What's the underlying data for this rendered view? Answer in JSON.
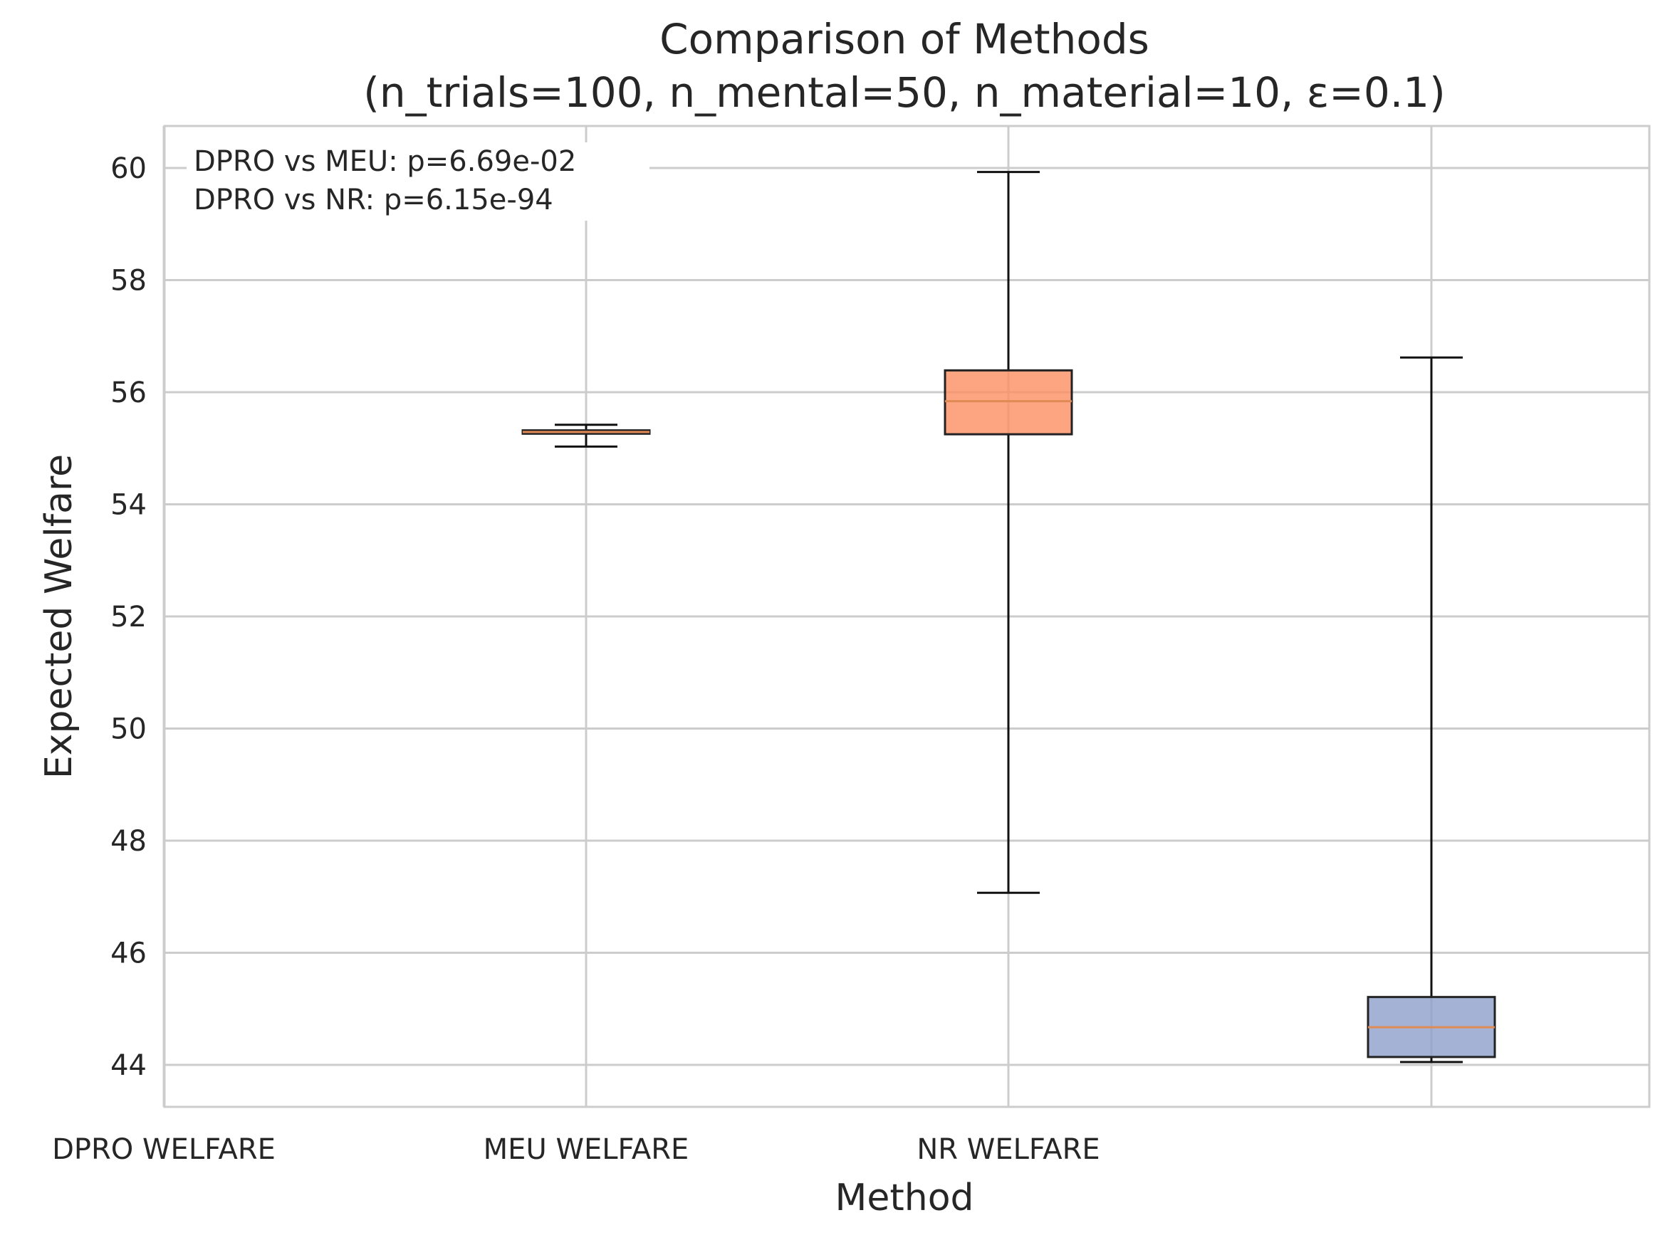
{
  "chart_data": {
    "type": "box",
    "title": "Comparison of Methods",
    "subtitle": "(n_trials=100, n_mental=50, n_material=10, ε=0.1)",
    "xlabel": "Method",
    "ylabel": "Expected Welfare",
    "ylim": [
      43.25,
      60.75
    ],
    "yticks": [
      44,
      46,
      48,
      50,
      52,
      54,
      56,
      58,
      60
    ],
    "categories": [
      "DPRO WELFARE",
      "MEU WELFARE",
      "NR WELFARE",
      ""
    ],
    "grid": true,
    "annotations": [
      "DPRO vs MEU: p=6.69e-02",
      "DPRO vs NR: p=6.15e-94"
    ],
    "boxes": [
      {
        "category": "",
        "whisker_low": 55.03,
        "q1": 55.26,
        "median": 55.29,
        "q3": 55.32,
        "whisker_high": 55.42,
        "color": "#fc8d62"
      },
      {
        "category": "",
        "whisker_low": 47.07,
        "q1": 55.25,
        "median": 55.84,
        "q3": 56.39,
        "whisker_high": 59.93,
        "color": "#fc8d62"
      },
      {
        "category": "",
        "whisker_low": 44.05,
        "q1": 44.14,
        "median": 44.67,
        "q3": 45.21,
        "whisker_high": 56.62,
        "color": "#8da0cb"
      }
    ],
    "median_color": "#e08a55"
  }
}
